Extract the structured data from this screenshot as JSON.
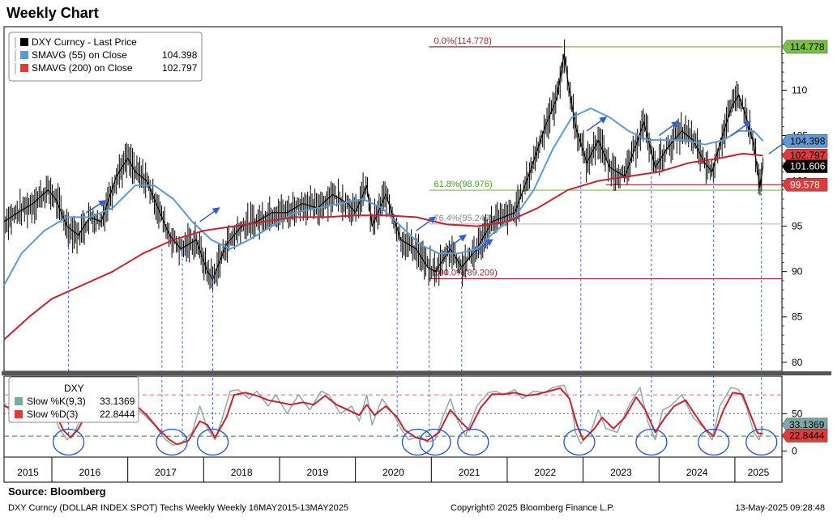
{
  "title": "Weekly Chart",
  "source": "Source:  Bloomberg",
  "footer": {
    "left": "DXY Curncy (DOLLAR INDEX SPOT) Techs Weekly  Weekly 16MAY2015-13MAY2025",
    "center": "Copyright© 2025 Bloomberg Finance L.P.",
    "right": "13-May-2025 09:28:48"
  },
  "colors": {
    "price": "#000000",
    "sma55": "#5b9bd5",
    "sma200": "#c8232c",
    "fib_red": "#b22030",
    "fib_green": "#7ac143",
    "fib_grey": "#a0a0a0",
    "stoch_k": "#8fa9a9",
    "stoch_d": "#c8232c",
    "arrow": "#3060d0",
    "circle": "#1f4fd8"
  },
  "legend_main": [
    {
      "label": "DXY Curncy - Last Price",
      "value": "",
      "color": "#000000"
    },
    {
      "label": "SMAVG (55)  on Close",
      "value": "104.398",
      "color": "#5b9bd5"
    },
    {
      "label": "SMAVG (200)  on Close",
      "value": "102.797",
      "color": "#e03a3a"
    }
  ],
  "legend_stoch": {
    "title": "DXY",
    "items": [
      {
        "label": "Slow %K(9,3)",
        "value": "33.1369",
        "color": "#7fa7a7"
      },
      {
        "label": "Slow %D(3)",
        "value": "22.8444",
        "color": "#e03a3a"
      }
    ]
  },
  "chart_data": {
    "type": "line",
    "x_axis_labels": [
      "2015",
      "2016",
      "2017",
      "2018",
      "2019",
      "2020",
      "2021",
      "2022",
      "2023",
      "2024",
      "2025"
    ],
    "y_ticks": [
      80,
      85,
      90,
      95,
      100,
      105,
      110
    ],
    "ylim": [
      79,
      117
    ],
    "stoch_ticks": [
      0,
      50
    ],
    "stoch_ylim": [
      -8,
      100
    ],
    "price_series": [
      [
        2015.37,
        95.5
      ],
      [
        2015.55,
        96.5
      ],
      [
        2015.75,
        97.5
      ],
      [
        2015.95,
        99.0
      ],
      [
        2016.05,
        98.0
      ],
      [
        2016.2,
        95.0
      ],
      [
        2016.35,
        94.0
      ],
      [
        2016.5,
        96.0
      ],
      [
        2016.65,
        95.5
      ],
      [
        2016.85,
        100.5
      ],
      [
        2017.0,
        102.5
      ],
      [
        2017.1,
        101.0
      ],
      [
        2017.25,
        100.0
      ],
      [
        2017.4,
        97.0
      ],
      [
        2017.55,
        94.0
      ],
      [
        2017.7,
        92.5
      ],
      [
        2017.9,
        93.5
      ],
      [
        2018.05,
        90.0
      ],
      [
        2018.12,
        89.2
      ],
      [
        2018.3,
        93.0
      ],
      [
        2018.5,
        95.0
      ],
      [
        2018.7,
        95.5
      ],
      [
        2018.9,
        96.5
      ],
      [
        2019.1,
        96.5
      ],
      [
        2019.3,
        97.5
      ],
      [
        2019.5,
        97.0
      ],
      [
        2019.7,
        98.5
      ],
      [
        2019.9,
        97.5
      ],
      [
        2020.0,
        96.5
      ],
      [
        2020.15,
        99.5
      ],
      [
        2020.22,
        95.0
      ],
      [
        2020.4,
        98.5
      ],
      [
        2020.5,
        96.0
      ],
      [
        2020.6,
        93.5
      ],
      [
        2020.8,
        92.5
      ],
      [
        2020.95,
        90.5
      ],
      [
        2021.05,
        90.0
      ],
      [
        2021.25,
        92.5
      ],
      [
        2021.4,
        90.5
      ],
      [
        2021.6,
        92.5
      ],
      [
        2021.8,
        95.5
      ],
      [
        2021.95,
        96.0
      ],
      [
        2022.1,
        96.5
      ],
      [
        2022.3,
        101.0
      ],
      [
        2022.5,
        106.0
      ],
      [
        2022.65,
        109.0
      ],
      [
        2022.75,
        114.0
      ],
      [
        2022.8,
        111.0
      ],
      [
        2022.9,
        106.0
      ],
      [
        2023.05,
        102.0
      ],
      [
        2023.2,
        104.5
      ],
      [
        2023.35,
        101.5
      ],
      [
        2023.55,
        100.5
      ],
      [
        2023.7,
        104.0
      ],
      [
        2023.8,
        106.5
      ],
      [
        2023.95,
        101.5
      ],
      [
        2024.1,
        103.5
      ],
      [
        2024.3,
        105.5
      ],
      [
        2024.45,
        104.5
      ],
      [
        2024.6,
        102.0
      ],
      [
        2024.7,
        101.0
      ],
      [
        2024.8,
        104.0
      ],
      [
        2024.95,
        108.0
      ],
      [
        2025.05,
        109.5
      ],
      [
        2025.15,
        107.0
      ],
      [
        2025.25,
        104.0
      ],
      [
        2025.33,
        99.2
      ],
      [
        2025.37,
        101.606
      ]
    ],
    "sma55_series": [
      [
        2015.37,
        88.5
      ],
      [
        2015.6,
        92.0
      ],
      [
        2015.9,
        94.5
      ],
      [
        2016.2,
        96.0
      ],
      [
        2016.5,
        96.0
      ],
      [
        2016.8,
        97.0
      ],
      [
        2017.1,
        99.5
      ],
      [
        2017.35,
        99.5
      ],
      [
        2017.6,
        98.0
      ],
      [
        2017.85,
        95.5
      ],
      [
        2018.1,
        93.5
      ],
      [
        2018.35,
        92.5
      ],
      [
        2018.6,
        93.5
      ],
      [
        2018.9,
        95.0
      ],
      [
        2019.2,
        96.5
      ],
      [
        2019.5,
        97.0
      ],
      [
        2019.8,
        97.5
      ],
      [
        2020.1,
        98.0
      ],
      [
        2020.35,
        97.0
      ],
      [
        2020.6,
        95.0
      ],
      [
        2020.85,
        93.0
      ],
      [
        2021.1,
        92.0
      ],
      [
        2021.35,
        92.0
      ],
      [
        2021.6,
        92.5
      ],
      [
        2021.85,
        94.5
      ],
      [
        2022.1,
        96.0
      ],
      [
        2022.35,
        99.0
      ],
      [
        2022.6,
        103.5
      ],
      [
        2022.85,
        107.0
      ],
      [
        2023.1,
        108.0
      ],
      [
        2023.35,
        107.0
      ],
      [
        2023.6,
        105.5
      ],
      [
        2023.85,
        104.5
      ],
      [
        2024.1,
        104.5
      ],
      [
        2024.35,
        104.5
      ],
      [
        2024.6,
        104.0
      ],
      [
        2024.85,
        104.5
      ],
      [
        2025.05,
        105.5
      ],
      [
        2025.25,
        105.5
      ],
      [
        2025.37,
        104.398
      ]
    ],
    "sma200_series": [
      [
        2015.37,
        82.5
      ],
      [
        2015.7,
        85.0
      ],
      [
        2016.0,
        87.0
      ],
      [
        2016.4,
        88.5
      ],
      [
        2016.8,
        90.0
      ],
      [
        2017.2,
        92.0
      ],
      [
        2017.6,
        93.5
      ],
      [
        2018.0,
        94.5
      ],
      [
        2018.4,
        95.0
      ],
      [
        2018.8,
        95.5
      ],
      [
        2019.2,
        96.0
      ],
      [
        2019.6,
        96.0
      ],
      [
        2020.0,
        96.2
      ],
      [
        2020.4,
        96.2
      ],
      [
        2020.8,
        96.0
      ],
      [
        2021.2,
        95.2
      ],
      [
        2021.6,
        95.0
      ],
      [
        2022.0,
        95.5
      ],
      [
        2022.4,
        97.0
      ],
      [
        2022.8,
        99.0
      ],
      [
        2023.2,
        100.0
      ],
      [
        2023.6,
        100.5
      ],
      [
        2024.0,
        101.0
      ],
      [
        2024.4,
        102.0
      ],
      [
        2024.8,
        102.5
      ],
      [
        2025.1,
        103.0
      ],
      [
        2025.37,
        102.797
      ]
    ],
    "fibonacci": [
      {
        "label": "0.0%(114.778)",
        "value": 114.778
      },
      {
        "label": "61.8%(98.976)",
        "value": 98.976
      },
      {
        "label": "76.4%(95.243)",
        "value": 95.243
      },
      {
        "label": "100.0%(89.209)",
        "value": 89.209
      }
    ],
    "right_labels": [
      {
        "value": "114.778",
        "y": 114.778,
        "bg": "#7ac143",
        "fg": "#000000"
      },
      {
        "value": "104.398",
        "y": 104.398,
        "bg": "#5b9bd5",
        "fg": "#000000"
      },
      {
        "value": "102.797",
        "y": 102.797,
        "bg": "#e03a3a",
        "fg": "#000000"
      },
      {
        "value": "101.606",
        "y": 101.606,
        "bg": "#000000",
        "fg": "#ffffff"
      },
      {
        "value": "99.578",
        "y": 99.578,
        "bg": "#e03a3a",
        "fg": "#ffffff"
      }
    ],
    "stoch_right_labels": [
      {
        "value": "33.1369",
        "y": 33.1369,
        "bg": "#7fa7a7",
        "fg": "#000000"
      },
      {
        "value": "22.8444",
        "y": 22.8444,
        "bg": "#e03a3a",
        "fg": "#000000"
      }
    ],
    "stoch_levels": [
      75,
      50,
      20
    ],
    "stochastic_k": [
      [
        2015.37,
        65
      ],
      [
        2015.5,
        45
      ],
      [
        2015.65,
        75
      ],
      [
        2015.8,
        55
      ],
      [
        2015.9,
        80
      ],
      [
        2016.0,
        55
      ],
      [
        2016.1,
        30
      ],
      [
        2016.2,
        15
      ],
      [
        2016.3,
        25
      ],
      [
        2016.45,
        60
      ],
      [
        2016.6,
        75
      ],
      [
        2016.7,
        78
      ],
      [
        2016.85,
        85
      ],
      [
        2016.95,
        70
      ],
      [
        2017.05,
        60
      ],
      [
        2017.2,
        50
      ],
      [
        2017.35,
        35
      ],
      [
        2017.5,
        15
      ],
      [
        2017.6,
        8
      ],
      [
        2017.7,
        10
      ],
      [
        2017.85,
        25
      ],
      [
        2017.95,
        60
      ],
      [
        2018.05,
        30
      ],
      [
        2018.15,
        15
      ],
      [
        2018.25,
        45
      ],
      [
        2018.35,
        80
      ],
      [
        2018.45,
        82
      ],
      [
        2018.6,
        70
      ],
      [
        2018.7,
        80
      ],
      [
        2018.85,
        60
      ],
      [
        2018.95,
        75
      ],
      [
        2019.1,
        50
      ],
      [
        2019.25,
        75
      ],
      [
        2019.4,
        55
      ],
      [
        2019.55,
        80
      ],
      [
        2019.65,
        75
      ],
      [
        2019.8,
        50
      ],
      [
        2019.95,
        60
      ],
      [
        2020.05,
        40
      ],
      [
        2020.15,
        75
      ],
      [
        2020.22,
        35
      ],
      [
        2020.35,
        70
      ],
      [
        2020.5,
        50
      ],
      [
        2020.6,
        30
      ],
      [
        2020.7,
        15
      ],
      [
        2020.85,
        20
      ],
      [
        2020.95,
        12
      ],
      [
        2021.05,
        15
      ],
      [
        2021.15,
        45
      ],
      [
        2021.25,
        70
      ],
      [
        2021.35,
        40
      ],
      [
        2021.45,
        20
      ],
      [
        2021.6,
        60
      ],
      [
        2021.75,
        78
      ],
      [
        2021.85,
        80
      ],
      [
        2021.95,
        75
      ],
      [
        2022.1,
        82
      ],
      [
        2022.2,
        70
      ],
      [
        2022.35,
        80
      ],
      [
        2022.5,
        78
      ],
      [
        2022.6,
        85
      ],
      [
        2022.75,
        88
      ],
      [
        2022.85,
        60
      ],
      [
        2022.9,
        25
      ],
      [
        2022.97,
        10
      ],
      [
        2023.1,
        25
      ],
      [
        2023.2,
        55
      ],
      [
        2023.3,
        30
      ],
      [
        2023.45,
        25
      ],
      [
        2023.6,
        60
      ],
      [
        2023.75,
        85
      ],
      [
        2023.85,
        40
      ],
      [
        2023.95,
        15
      ],
      [
        2024.05,
        55
      ],
      [
        2024.15,
        60
      ],
      [
        2024.3,
        75
      ],
      [
        2024.45,
        45
      ],
      [
        2024.6,
        30
      ],
      [
        2024.7,
        15
      ],
      [
        2024.8,
        60
      ],
      [
        2024.95,
        85
      ],
      [
        2025.05,
        82
      ],
      [
        2025.15,
        60
      ],
      [
        2025.25,
        25
      ],
      [
        2025.32,
        15
      ],
      [
        2025.37,
        33
      ]
    ],
    "stochastic_d": [
      [
        2015.37,
        60
      ],
      [
        2015.55,
        55
      ],
      [
        2015.7,
        62
      ],
      [
        2015.85,
        68
      ],
      [
        2015.95,
        72
      ],
      [
        2016.05,
        50
      ],
      [
        2016.15,
        28
      ],
      [
        2016.25,
        18
      ],
      [
        2016.35,
        30
      ],
      [
        2016.5,
        58
      ],
      [
        2016.65,
        72
      ],
      [
        2016.8,
        78
      ],
      [
        2016.95,
        75
      ],
      [
        2017.1,
        62
      ],
      [
        2017.25,
        48
      ],
      [
        2017.4,
        30
      ],
      [
        2017.55,
        15
      ],
      [
        2017.65,
        9
      ],
      [
        2017.8,
        14
      ],
      [
        2017.95,
        40
      ],
      [
        2018.05,
        35
      ],
      [
        2018.15,
        18
      ],
      [
        2018.3,
        45
      ],
      [
        2018.4,
        75
      ],
      [
        2018.55,
        78
      ],
      [
        2018.7,
        74
      ],
      [
        2018.85,
        68
      ],
      [
        2019.0,
        65
      ],
      [
        2019.15,
        62
      ],
      [
        2019.3,
        65
      ],
      [
        2019.45,
        62
      ],
      [
        2019.6,
        74
      ],
      [
        2019.75,
        62
      ],
      [
        2019.9,
        55
      ],
      [
        2020.05,
        48
      ],
      [
        2020.15,
        62
      ],
      [
        2020.25,
        48
      ],
      [
        2020.4,
        60
      ],
      [
        2020.55,
        45
      ],
      [
        2020.65,
        28
      ],
      [
        2020.8,
        18
      ],
      [
        2020.95,
        14
      ],
      [
        2021.1,
        25
      ],
      [
        2021.25,
        55
      ],
      [
        2021.4,
        38
      ],
      [
        2021.5,
        28
      ],
      [
        2021.65,
        58
      ],
      [
        2021.8,
        76
      ],
      [
        2021.95,
        76
      ],
      [
        2022.1,
        78
      ],
      [
        2022.25,
        74
      ],
      [
        2022.4,
        76
      ],
      [
        2022.55,
        80
      ],
      [
        2022.7,
        84
      ],
      [
        2022.82,
        70
      ],
      [
        2022.92,
        35
      ],
      [
        2023.0,
        15
      ],
      [
        2023.15,
        30
      ],
      [
        2023.25,
        45
      ],
      [
        2023.4,
        30
      ],
      [
        2023.55,
        45
      ],
      [
        2023.7,
        72
      ],
      [
        2023.82,
        55
      ],
      [
        2023.95,
        25
      ],
      [
        2024.08,
        45
      ],
      [
        2024.2,
        60
      ],
      [
        2024.35,
        68
      ],
      [
        2024.5,
        45
      ],
      [
        2024.62,
        28
      ],
      [
        2024.72,
        20
      ],
      [
        2024.85,
        55
      ],
      [
        2024.97,
        78
      ],
      [
        2025.1,
        76
      ],
      [
        2025.2,
        50
      ],
      [
        2025.3,
        24
      ],
      [
        2025.37,
        23
      ]
    ],
    "circles": [
      2016.22,
      2017.58,
      2018.12,
      2020.82,
      2021.05,
      2021.55,
      2022.95,
      2023.9,
      2024.72,
      2025.35
    ],
    "vlines": [
      {
        "x": 2016.22,
        "y": 93.2
      },
      {
        "x": 2017.45,
        "y": 92.5
      },
      {
        "x": 2017.72,
        "y": 92.5
      },
      {
        "x": 2018.12,
        "y": 89.5
      },
      {
        "x": 2020.55,
        "y": 93.5
      },
      {
        "x": 2020.97,
        "y": 89.3
      },
      {
        "x": 2021.4,
        "y": 90.5
      },
      {
        "x": 2022.97,
        "y": 101.0
      },
      {
        "x": 2023.9,
        "y": 100.5
      },
      {
        "x": 2024.72,
        "y": 100.5
      },
      {
        "x": 2025.35,
        "y": 99.2
      }
    ],
    "arrows": [
      [
        2016.45,
        96.5,
        2016.7,
        97.8
      ],
      [
        2017.95,
        95.5,
        2018.2,
        97.0
      ],
      [
        2020.8,
        94.5,
        2021.05,
        96.0
      ],
      [
        2021.2,
        92.5,
        2021.45,
        94.0
      ],
      [
        2021.55,
        92.0,
        2021.8,
        93.5
      ],
      [
        2023.05,
        105.5,
        2023.3,
        107.0
      ],
      [
        2024.0,
        105.0,
        2024.25,
        106.5
      ],
      [
        2024.95,
        105.0,
        2025.2,
        106.5
      ],
      [
        2025.45,
        103.0,
        2025.7,
        104.5
      ]
    ]
  }
}
